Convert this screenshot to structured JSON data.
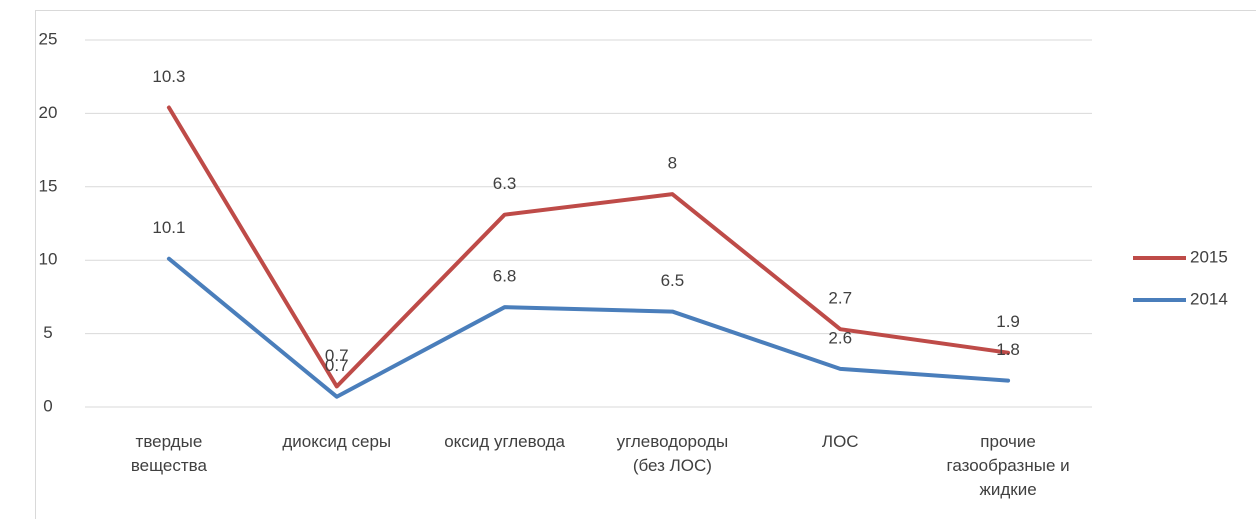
{
  "chart_data": {
    "type": "line",
    "stacked": true,
    "categories": [
      "твердые вещества",
      "диоксид серы",
      "оксид углевода",
      "углеводороды (без ЛОС)",
      "ЛОС",
      "прочие газообразные и жидкие"
    ],
    "series": [
      {
        "name": "2014",
        "color": "#4a7ebb",
        "values": [
          10.1,
          0.7,
          6.8,
          6.5,
          2.6,
          1.8
        ]
      },
      {
        "name": "2015",
        "color": "#be4b48",
        "values": [
          10.3,
          0.7,
          6.3,
          8,
          2.7,
          1.9
        ]
      }
    ],
    "ylim": [
      0,
      25
    ],
    "yticks": [
      0,
      5,
      10,
      15,
      20,
      25
    ],
    "grid": true,
    "legend": "right"
  }
}
